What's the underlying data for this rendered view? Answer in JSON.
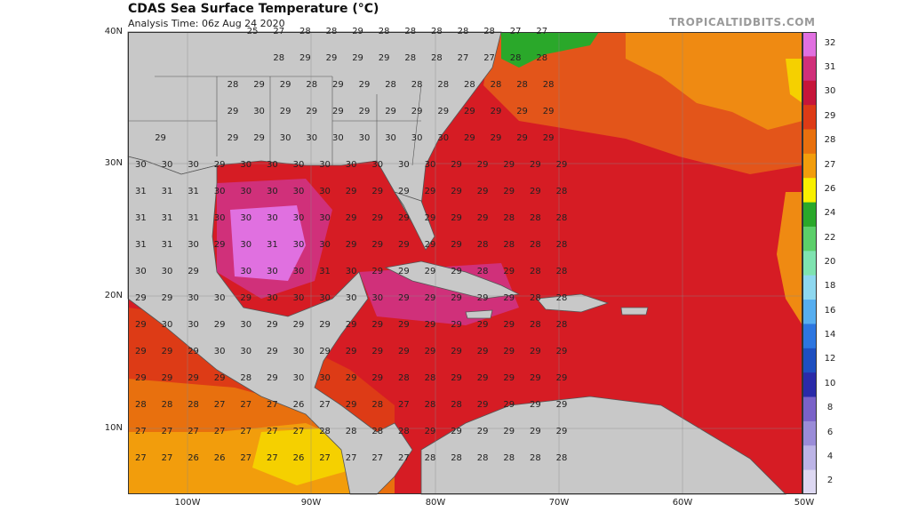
{
  "header": {
    "title": "CDAS Sea Surface Temperature (°C)",
    "subtitle": "Analysis Time: 06z Aug 24 2020",
    "brand": "TROPICALTIDBITS.COM"
  },
  "axes": {
    "lat_labels": [
      "40N",
      "30N",
      "20N",
      "10N"
    ],
    "lon_labels": [
      "100W",
      "90W",
      "80W",
      "70W",
      "60W",
      "50W"
    ]
  },
  "colorbar": {
    "labels": [
      "32",
      "31",
      "30",
      "29",
      "28",
      "27",
      "26",
      "24",
      "22",
      "20",
      "18",
      "16",
      "14",
      "12",
      "10",
      "8",
      "6",
      "4",
      "2"
    ],
    "colors": [
      "#e070e0",
      "#d0307a",
      "#c6163a",
      "#dd3b16",
      "#e8700e",
      "#f29d0c",
      "#f8f000",
      "#2aa82a",
      "#5ccf6a",
      "#7fe3b0",
      "#8ed8f0",
      "#57aef0",
      "#2d76e0",
      "#1e4fc0",
      "#2a2aa8",
      "#7a62c8",
      "#9a8cd8",
      "#bcb4e6",
      "#ddd8f2"
    ],
    "land_color": "#c8c8c8",
    "border_color": "#555555"
  },
  "sst_values": [
    {
      "row": 0,
      "vals": "                 25  27  28  28  29  28  28  28  28  28  27  27"
    },
    {
      "row": 1,
      "vals": "                     28  29  29  29  29  28  28  27  27  28  28"
    },
    {
      "row": 2,
      "vals": "              28  29  29  28  29  29  28  28  28  28  28  28  28"
    },
    {
      "row": 3,
      "vals": "              29  30  29  29  29  29  29  29  29  29  29  29  29"
    },
    {
      "row": 4,
      "vals": "   29         29  29  30  30  30  30  30  30  30  29  29  29  29"
    },
    {
      "row": 5,
      "vals": "30  30  30  29  30  30  30  30  30  30  30  30  29  29  29  29  29"
    },
    {
      "row": 6,
      "vals": "31  31  31  30  30  30  30  30  29  29  29  29  29  29  29  29  28"
    },
    {
      "row": 7,
      "vals": "31  31  31  30  30  30  30  30  29  29  29  29  29  29  28  28  28"
    },
    {
      "row": 8,
      "vals": "31  31  30  29  30  31  30  30  29  29  29  29  29  28  28  28  28"
    },
    {
      "row": 9,
      "vals": "30  30  29      30  30  30  31  30  29  29  29  29  28  29  28  28"
    },
    {
      "row": 10,
      "vals": "29  29  30  30  29  30  30  30  30  30  29  29  29  29  29  28  28"
    },
    {
      "row": 11,
      "vals": "29  30  30  29  30  29  29  29  29  29  29  29  29  29  29  28  28"
    },
    {
      "row": 12,
      "vals": "29  29  29  30  30  29  30  29  29  29  29  29  29  29  29  29  29"
    },
    {
      "row": 13,
      "vals": "29  29  29  29  28  29  30  30  29  29  28  28  29  29  29  29  29"
    },
    {
      "row": 14,
      "vals": "28  28  28  27  27  27  26  27  29  28  27  28  28  29  29  29  29"
    },
    {
      "row": 15,
      "vals": "27  27  27  27  27  27  27  28  28  28  28  29  29  29  29  29  29"
    },
    {
      "row": 16,
      "vals": "27  27  26  26  27  27  26  27  27  27  27  28  28  28  28  28  28"
    }
  ]
}
